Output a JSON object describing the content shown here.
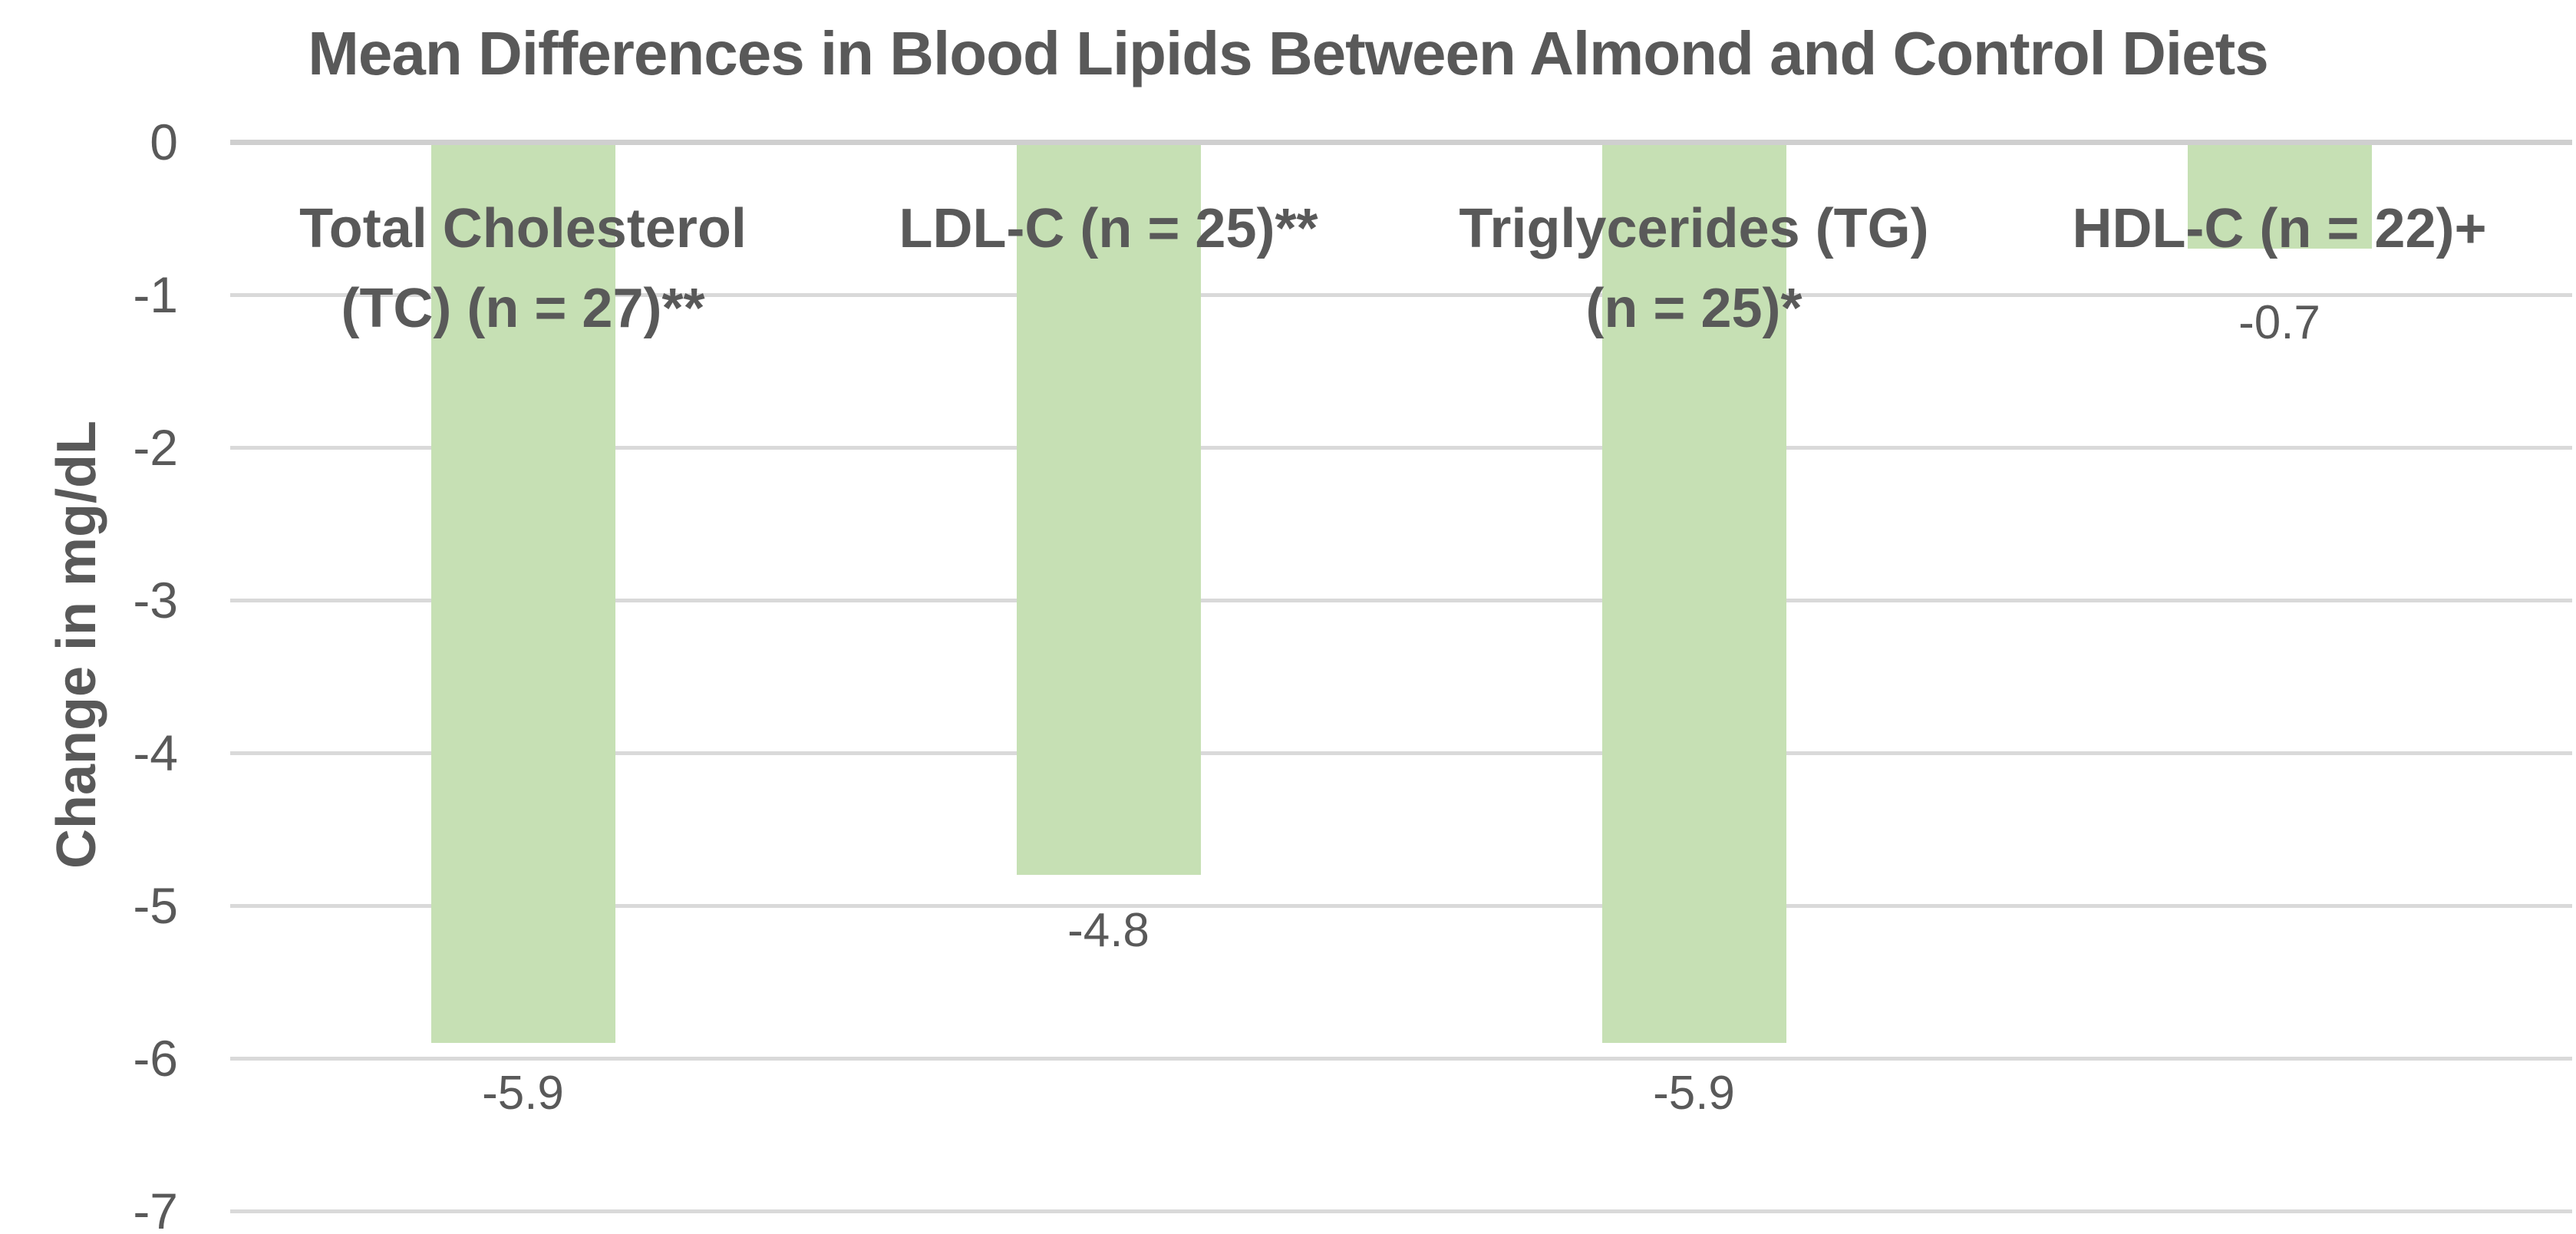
{
  "chart_data": {
    "type": "bar",
    "title": "Mean Differences in Blood Lipids Between Almond and Control Diets",
    "ylabel": "Change in mg/dL",
    "xlabel": "",
    "categories": [
      "Total Cholesterol (TC) (n = 27)**",
      "LDL-C (n = 25)**",
      "Triglycerides (TG) (n = 25)*",
      "HDL-C (n = 22)+"
    ],
    "category_label_lines": [
      [
        "Total Cholesterol",
        "(TC) (n = 27)**"
      ],
      [
        "LDL-C (n = 25)**"
      ],
      [
        "Triglycerides (TG)",
        "(n = 25)*"
      ],
      [
        "HDL-C (n = 22)+"
      ]
    ],
    "values": [
      -5.9,
      -4.8,
      -5.9,
      -0.7
    ],
    "value_labels": [
      "-5.9",
      "-4.8",
      "-5.9",
      "-0.7"
    ],
    "yticks": [
      "0",
      "-1",
      "-2",
      "-3",
      "-4",
      "-5",
      "-6",
      "-7"
    ],
    "ylim": [
      -7,
      0
    ],
    "grid": true,
    "legend": "none",
    "bar_color": "#c6e0b4",
    "text_color": "#595959",
    "gridline_color": "#d9d9d9",
    "zero_line_color": "#cfcfcf",
    "background_color": "#ffffff"
  }
}
